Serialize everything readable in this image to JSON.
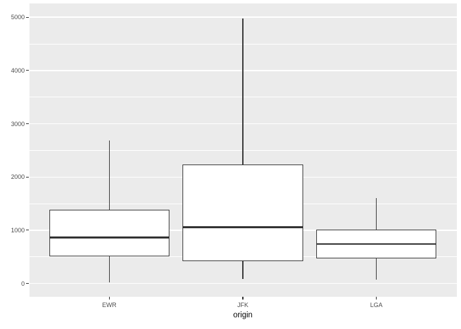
{
  "chart_data": {
    "type": "boxplot",
    "title": "",
    "xlabel": "origin",
    "ylabel": "",
    "categories": [
      "EWR",
      "JFK",
      "LGA"
    ],
    "y_tick_labels": [
      "0",
      "1000",
      "2000",
      "3000",
      "4000",
      "5000"
    ],
    "y_ticks": [
      0,
      1000,
      2000,
      3000,
      4000,
      5000
    ],
    "y_minor_ticks": [
      500,
      1500,
      2500,
      3500,
      4500
    ],
    "ylim": [
      -250,
      5260
    ],
    "grid": "horizontal-major-and-minor",
    "legend": "none",
    "panel_bg": "#EBEBEB",
    "grid_color": "#FFFFFF",
    "box_fill": "#FFFFFF",
    "box_stroke": "#3C3C3C",
    "tick_label_color": "#4D4D4D",
    "axis_title_color": "#000000",
    "series": [
      {
        "name": "EWR",
        "whisker_low": 20,
        "q1": 510,
        "median": 865,
        "q3": 1385,
        "whisker_high": 2690
      },
      {
        "name": "JFK",
        "whisker_low": 80,
        "q1": 415,
        "median": 1055,
        "q3": 2235,
        "whisker_high": 4980
      },
      {
        "name": "LGA",
        "whisker_low": 70,
        "q1": 465,
        "median": 740,
        "q3": 1015,
        "whisker_high": 1600
      }
    ]
  }
}
